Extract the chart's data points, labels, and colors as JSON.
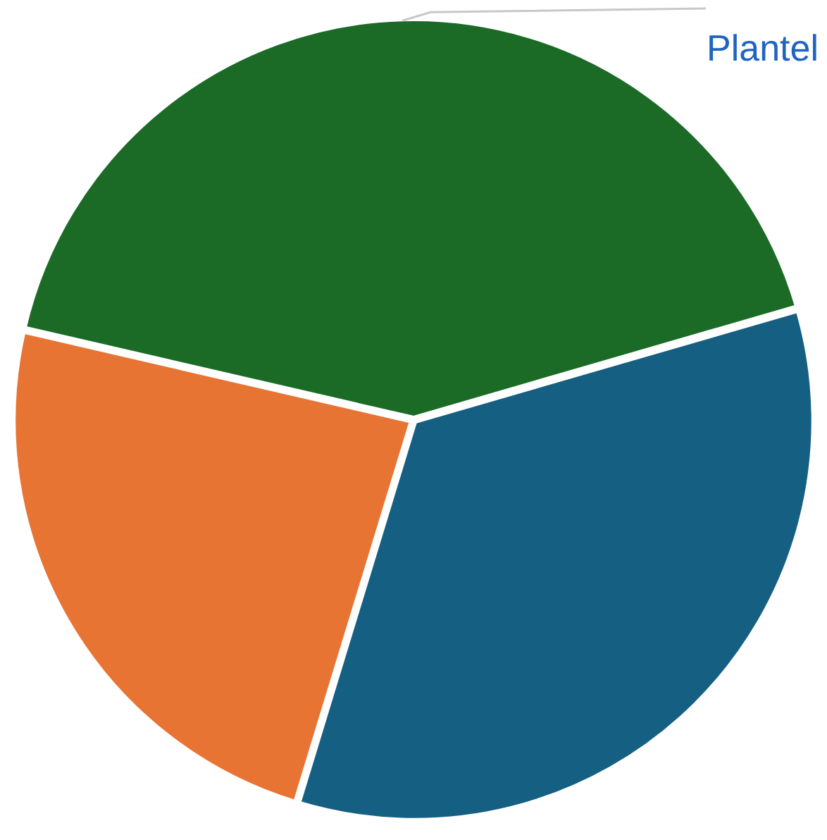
{
  "chart_data": {
    "type": "pie",
    "categories": [
      "Plantel",
      null,
      null
    ],
    "values": [
      41.9,
      34.2,
      23.9
    ],
    "colors": [
      "#1b6b27",
      "#155f82",
      "#e87434"
    ],
    "legend": false
  }
}
